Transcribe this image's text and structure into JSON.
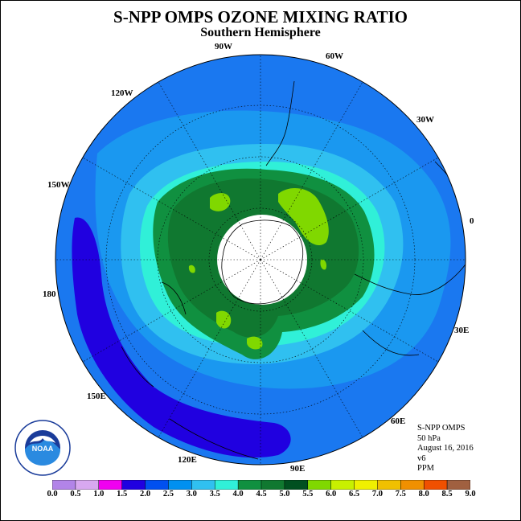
{
  "title": "S-NPP OMPS OZONE MIXING RATIO",
  "subtitle": "Southern Hemisphere",
  "longitude_labels": [
    "90W",
    "60W",
    "30W",
    "0",
    "30E",
    "60E",
    "90E",
    "120E",
    "150E",
    "180",
    "150W",
    "120W"
  ],
  "info": {
    "instrument": "S-NPP OMPS",
    "level": "50 hPa",
    "date": "August 16, 2016",
    "version": "v6",
    "units": "PPM"
  },
  "logo": {
    "name": "NOAA",
    "icon": "noaa-logo-icon"
  },
  "colorbar": {
    "ticks": [
      "0.0",
      "0.5",
      "1.0",
      "1.5",
      "2.0",
      "2.5",
      "3.0",
      "3.5",
      "4.0",
      "4.5",
      "5.0",
      "5.5",
      "6.0",
      "6.5",
      "7.0",
      "7.5",
      "8.0",
      "8.5",
      "9.0"
    ],
    "colors": [
      "#b284e8",
      "#d8a8f0",
      "#f000f0",
      "#2000e0",
      "#0050f0",
      "#0090f0",
      "#30c0f0",
      "#30f0d8",
      "#109040",
      "#107830",
      "#005020",
      "#80d800",
      "#c8f000",
      "#f0f000",
      "#f0c000",
      "#f09000",
      "#f05000",
      "#f00000",
      "#a06040"
    ]
  },
  "map_colors": {
    "background_field": "#1a78f0",
    "level_2_5": "#1a98f0",
    "level_3_0": "#30c0f0",
    "level_3_5": "#30f0d8",
    "level_4_0": "#109040",
    "level_4_5": "#107830",
    "level_5_0": "#80d800",
    "low_band": "#2000e0",
    "pole_hole": "#ffffff"
  }
}
